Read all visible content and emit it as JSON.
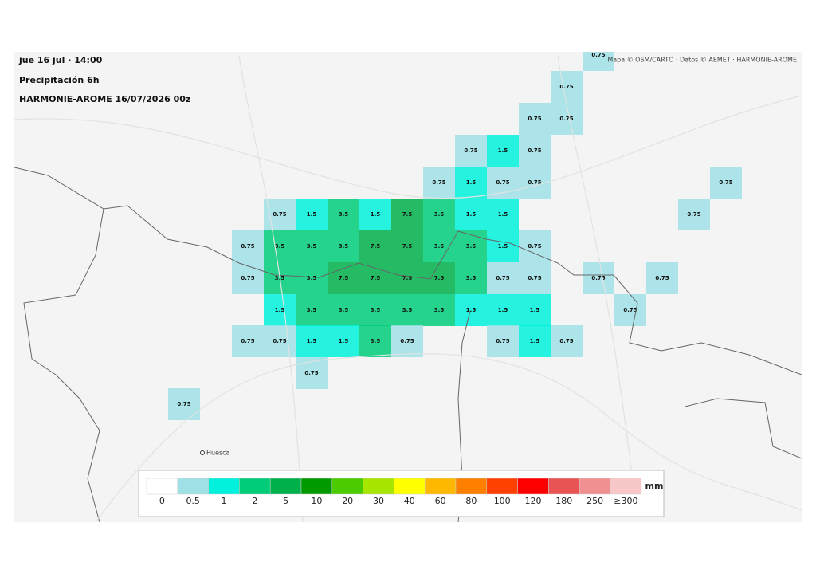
{
  "header": {
    "time": "jue 16 jul · 14:00",
    "variable": "Precipitación 6h",
    "model": "HARMONIE-AROME 16/07/2026 00z"
  },
  "attribution": "Mapa © OSM/CARTO · Datos © AEMET · HARMONIE-AROME",
  "places": [
    "Huesca"
  ],
  "grid_labels": [
    [
      null,
      null,
      null,
      null,
      null,
      null,
      null,
      null,
      null,
      null,
      null,
      null,
      null,
      "0.75",
      null,
      null,
      null,
      null
    ],
    [
      null,
      null,
      null,
      null,
      null,
      null,
      null,
      null,
      null,
      null,
      null,
      null,
      "0.75",
      null,
      null,
      null,
      null,
      null
    ],
    [
      null,
      null,
      null,
      null,
      null,
      null,
      null,
      null,
      null,
      null,
      null,
      "0.75",
      "0.75",
      null,
      null,
      null,
      null,
      null
    ],
    [
      null,
      null,
      null,
      null,
      null,
      null,
      null,
      null,
      null,
      "0.75",
      "1.5",
      "0.75",
      null,
      null,
      null,
      null,
      null,
      null
    ],
    [
      null,
      null,
      null,
      null,
      null,
      null,
      null,
      null,
      "0.75",
      "1.5",
      "0.75",
      "0.75",
      null,
      null,
      null,
      null,
      null,
      "0.75"
    ],
    [
      null,
      null,
      null,
      "0.75",
      "1.5",
      "3.5",
      "1.5",
      "7.5",
      "3.5",
      "1.5",
      "1.5",
      null,
      null,
      null,
      null,
      null,
      "0.75",
      null
    ],
    [
      null,
      null,
      "0.75",
      "3.5",
      "3.5",
      "3.5",
      "7.5",
      "7.5",
      "3.5",
      "3.5",
      "1.5",
      "0.75",
      null,
      null,
      null,
      null,
      null,
      null
    ],
    [
      null,
      null,
      "0.75",
      "3.5",
      "3.5",
      "7.5",
      "7.5",
      "7.5",
      "7.5",
      "3.5",
      "0.75",
      "0.75",
      null,
      "0.75",
      null,
      "0.75",
      null,
      null
    ],
    [
      null,
      null,
      null,
      "1.5",
      "3.5",
      "3.5",
      "3.5",
      "3.5",
      "3.5",
      "1.5",
      "1.5",
      "1.5",
      null,
      null,
      "0.75",
      null,
      null,
      null
    ],
    [
      null,
      null,
      "0.75",
      "0.75",
      "1.5",
      "1.5",
      "3.5",
      "0.75",
      null,
      null,
      "0.75",
      "1.5",
      "0.75",
      null,
      null,
      null,
      null,
      null
    ],
    [
      null,
      null,
      null,
      null,
      "0.75",
      null,
      null,
      null,
      null,
      null,
      null,
      null,
      null,
      null,
      null,
      null,
      null,
      null
    ],
    [
      "0.75",
      null,
      null,
      null,
      null,
      null,
      null,
      null,
      null,
      null,
      null,
      null,
      null,
      null,
      null,
      null,
      null,
      null
    ]
  ],
  "legend": {
    "unit": "mm",
    "labels": [
      "0",
      "0.5",
      "1",
      "2",
      "5",
      "10",
      "20",
      "30",
      "40",
      "60",
      "80",
      "100",
      "120",
      "180",
      "250",
      "≥300"
    ],
    "colors": [
      "#ffffff",
      "#9fe1e6",
      "#00f2dc",
      "#00cc7a",
      "#00b04a",
      "#009a00",
      "#4ccc00",
      "#a6e600",
      "#ffff00",
      "#ffb800",
      "#ff8000",
      "#ff4000",
      "#ff0000",
      "#e85454",
      "#f09090",
      "#f8c8c8"
    ]
  }
}
